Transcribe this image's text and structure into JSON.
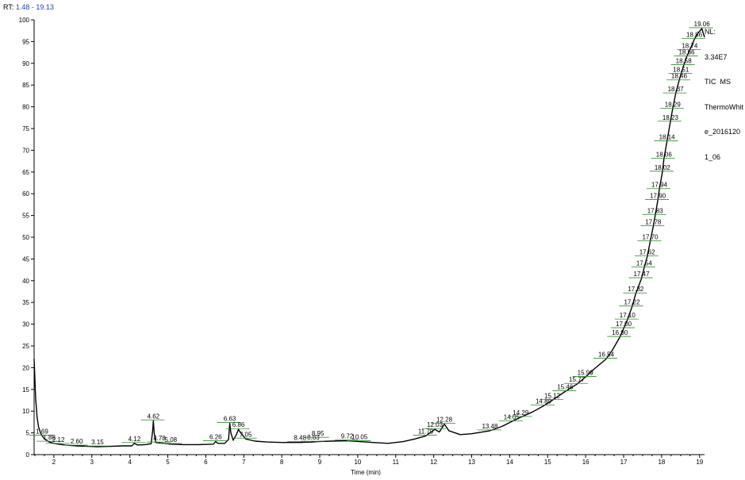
{
  "header": {
    "rt_prefix": "RT:",
    "rt_range": "1.48 - 19.13"
  },
  "info": {
    "nl_label": "NL:",
    "nl_value": "3.34E7",
    "mode": "TIC  MS",
    "file_line1": "ThermoWhit",
    "file_line2": "e_2016120",
    "file_line3": "1_06"
  },
  "colors": {
    "trace": "#000000",
    "annotation_line": "#2e8b2e",
    "rt_range": "#1f3fbf"
  },
  "chart_data": {
    "type": "line",
    "title": "",
    "xlabel": "Time (min)",
    "ylabel": "",
    "xlim": [
      1.48,
      19.13
    ],
    "ylim": [
      0,
      100
    ],
    "xticks": [
      2,
      3,
      4,
      5,
      6,
      7,
      8,
      9,
      10,
      11,
      12,
      13,
      14,
      15,
      16,
      17,
      18,
      19
    ],
    "yticks": [
      0,
      5,
      10,
      15,
      20,
      25,
      30,
      35,
      40,
      45,
      50,
      55,
      60,
      65,
      70,
      75,
      80,
      85,
      90,
      95,
      100
    ],
    "grid": false,
    "series": [
      {
        "x": [
          1.48,
          1.52,
          1.56,
          1.6,
          1.65,
          1.69,
          1.75,
          1.8,
          1.88,
          2.0,
          2.12,
          2.3,
          2.6,
          2.9,
          3.15,
          3.5,
          3.8,
          4.05,
          4.12,
          4.2,
          4.4,
          4.56,
          4.6,
          4.62,
          4.64,
          4.68,
          4.78,
          5.08,
          5.4,
          5.8,
          6.2,
          6.26,
          6.32,
          6.5,
          6.6,
          6.63,
          6.66,
          6.72,
          6.8,
          6.86,
          6.92,
          7.05,
          7.3,
          7.6,
          8.0,
          8.48,
          8.83,
          8.95,
          9.3,
          9.72,
          10.05,
          10.4,
          10.8,
          11.2,
          11.5,
          11.79,
          12.03,
          12.15,
          12.28,
          12.4,
          12.7,
          13.0,
          13.48,
          13.8,
          14.05,
          14.29,
          14.6,
          14.89,
          15.12,
          15.46,
          15.77,
          15.99,
          16.2,
          16.54,
          16.7,
          16.9,
          17.0,
          17.1,
          17.22,
          17.32,
          17.47,
          17.54,
          17.62,
          17.7,
          17.78,
          17.83,
          17.9,
          17.94,
          18.02,
          18.06,
          18.14,
          18.23,
          18.29,
          18.37,
          18.46,
          18.51,
          18.58,
          18.66,
          18.74,
          18.86,
          18.96,
          19.06,
          19.13
        ],
        "y": [
          22.0,
          13.0,
          8.5,
          6.3,
          5.0,
          4.3,
          3.7,
          3.3,
          2.9,
          2.6,
          2.4,
          2.2,
          2.0,
          1.9,
          1.8,
          1.9,
          2.0,
          2.0,
          2.6,
          2.2,
          2.3,
          2.5,
          5.5,
          7.8,
          5.0,
          2.8,
          2.7,
          2.4,
          2.3,
          2.3,
          2.4,
          3.0,
          2.6,
          2.6,
          3.5,
          7.2,
          5.0,
          3.3,
          4.5,
          5.8,
          5.0,
          3.6,
          3.1,
          2.9,
          2.8,
          2.8,
          2.9,
          3.0,
          3.1,
          3.2,
          3.0,
          2.8,
          2.6,
          3.0,
          3.6,
          4.3,
          5.8,
          5.2,
          7.0,
          5.5,
          4.6,
          4.8,
          5.5,
          6.5,
          7.6,
          8.6,
          9.8,
          11.2,
          12.5,
          14.5,
          16.2,
          17.8,
          19.5,
          22.0,
          24.0,
          27.0,
          29.0,
          31.0,
          34.0,
          37.0,
          40.5,
          43.0,
          45.5,
          49.0,
          52.5,
          55.0,
          58.5,
          61.0,
          65.0,
          68.0,
          72.0,
          76.5,
          79.5,
          83.0,
          86.0,
          87.5,
          89.5,
          91.5,
          93.0,
          95.5,
          97.0,
          98.0,
          96.0
        ]
      }
    ],
    "peak_labels": [
      {
        "x": 1.69,
        "y": 4.3,
        "label": "1.69"
      },
      {
        "x": 1.88,
        "y": 2.9,
        "label": "1.88"
      },
      {
        "x": 2.12,
        "y": 2.4,
        "label": "2.12"
      },
      {
        "x": 2.6,
        "y": 2.0,
        "label": "2.60"
      },
      {
        "x": 3.15,
        "y": 1.8,
        "label": "3.15"
      },
      {
        "x": 4.12,
        "y": 2.6,
        "label": "4.12"
      },
      {
        "x": 4.62,
        "y": 7.8,
        "label": "4.62"
      },
      {
        "x": 4.78,
        "y": 2.7,
        "label": "4.78"
      },
      {
        "x": 5.08,
        "y": 2.4,
        "label": "5.08"
      },
      {
        "x": 6.26,
        "y": 3.0,
        "label": "6.26"
      },
      {
        "x": 6.63,
        "y": 7.2,
        "label": "6.63"
      },
      {
        "x": 6.86,
        "y": 5.8,
        "label": "6.86"
      },
      {
        "x": 7.05,
        "y": 3.6,
        "label": "7.05"
      },
      {
        "x": 8.48,
        "y": 2.8,
        "label": "8.48"
      },
      {
        "x": 8.83,
        "y": 2.9,
        "label": "8.83"
      },
      {
        "x": 8.95,
        "y": 3.8,
        "label": "8.95"
      },
      {
        "x": 9.72,
        "y": 3.2,
        "label": "9.72"
      },
      {
        "x": 10.05,
        "y": 3.0,
        "label": "10.05"
      },
      {
        "x": 11.79,
        "y": 4.3,
        "label": "11.79"
      },
      {
        "x": 12.03,
        "y": 5.8,
        "label": "12.03"
      },
      {
        "x": 12.28,
        "y": 7.0,
        "label": "12.28"
      },
      {
        "x": 13.48,
        "y": 5.5,
        "label": "13.48"
      },
      {
        "x": 14.05,
        "y": 7.6,
        "label": "14.05"
      },
      {
        "x": 14.29,
        "y": 8.6,
        "label": "14.29"
      },
      {
        "x": 14.89,
        "y": 11.2,
        "label": "14.89"
      },
      {
        "x": 15.12,
        "y": 12.5,
        "label": "15.12"
      },
      {
        "x": 15.46,
        "y": 14.5,
        "label": "15.46"
      },
      {
        "x": 15.77,
        "y": 16.2,
        "label": "15.77"
      },
      {
        "x": 15.99,
        "y": 17.8,
        "label": "15.99"
      },
      {
        "x": 16.54,
        "y": 22.0,
        "label": "16.54"
      },
      {
        "x": 16.9,
        "y": 27.0,
        "label": "16.90"
      },
      {
        "x": 17.0,
        "y": 29.0,
        "label": "17.00"
      },
      {
        "x": 17.1,
        "y": 31.0,
        "label": "17.10"
      },
      {
        "x": 17.22,
        "y": 34.0,
        "label": "17.22"
      },
      {
        "x": 17.32,
        "y": 37.0,
        "label": "17.32"
      },
      {
        "x": 17.47,
        "y": 40.5,
        "label": "17.47"
      },
      {
        "x": 17.54,
        "y": 43.0,
        "label": "17.54"
      },
      {
        "x": 17.62,
        "y": 45.5,
        "label": "17.62"
      },
      {
        "x": 17.7,
        "y": 49.0,
        "label": "17.70"
      },
      {
        "x": 17.78,
        "y": 52.5,
        "label": "17.78"
      },
      {
        "x": 17.83,
        "y": 55.0,
        "label": "17.83"
      },
      {
        "x": 17.9,
        "y": 58.5,
        "label": "17.90"
      },
      {
        "x": 17.94,
        "y": 61.0,
        "label": "17.94"
      },
      {
        "x": 18.02,
        "y": 65.0,
        "label": "18.02"
      },
      {
        "x": 18.06,
        "y": 68.0,
        "label": "18.06"
      },
      {
        "x": 18.14,
        "y": 72.0,
        "label": "18.14"
      },
      {
        "x": 18.23,
        "y": 76.5,
        "label": "18.23"
      },
      {
        "x": 18.29,
        "y": 79.5,
        "label": "18.29"
      },
      {
        "x": 18.37,
        "y": 83.0,
        "label": "18.37"
      },
      {
        "x": 18.46,
        "y": 86.0,
        "label": "18.46"
      },
      {
        "x": 18.51,
        "y": 87.5,
        "label": "18.51"
      },
      {
        "x": 18.58,
        "y": 89.5,
        "label": "18.58"
      },
      {
        "x": 18.66,
        "y": 91.5,
        "label": "18.66"
      },
      {
        "x": 18.74,
        "y": 93.0,
        "label": "18.74"
      },
      {
        "x": 18.86,
        "y": 95.5,
        "label": "18.86"
      },
      {
        "x": 19.06,
        "y": 98.0,
        "label": "19.06"
      }
    ]
  }
}
